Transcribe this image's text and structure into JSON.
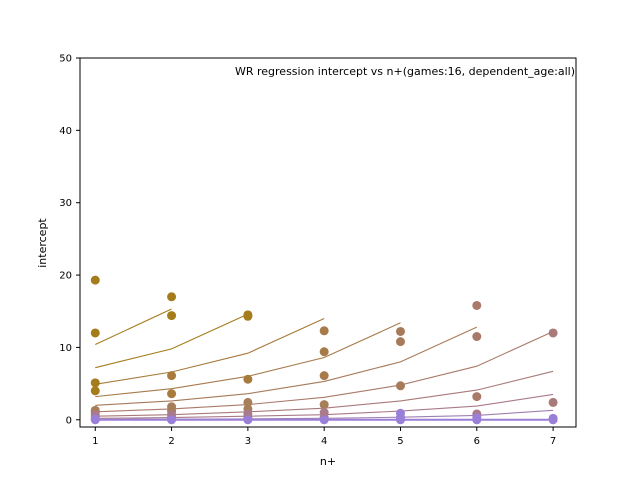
{
  "chart_data": {
    "type": "scatter",
    "title": "WR regression intercept vs n+(games:16, dependent_age:all)",
    "xlabel": "n+",
    "ylabel": "intercept",
    "xlim": [
      0.8,
      7.3
    ],
    "ylim": [
      -1,
      50
    ],
    "xticks": [
      1,
      2,
      3,
      4,
      5,
      6,
      7
    ],
    "yticks": [
      0,
      10,
      20,
      30,
      40,
      50
    ],
    "grid": false,
    "legend": "none",
    "scatter_points": [
      {
        "x": 1,
        "y": 19.3,
        "color": "#a57c1b"
      },
      {
        "x": 1,
        "y": 12.0,
        "color": "#a57c1b"
      },
      {
        "x": 1,
        "y": 5.1,
        "color": "#a57c1b"
      },
      {
        "x": 1,
        "y": 4.0,
        "color": "#a57c1b"
      },
      {
        "x": 1,
        "y": 1.3,
        "color": "#a77e5a"
      },
      {
        "x": 1,
        "y": 1.0,
        "color": "#a77e5a"
      },
      {
        "x": 1,
        "y": 0.7,
        "color": "#a97a8a"
      },
      {
        "x": 1,
        "y": 0.4,
        "color": "#a97a8a"
      },
      {
        "x": 1,
        "y": 0.1,
        "color": "#9a7fd8"
      },
      {
        "x": 1,
        "y": 0.0,
        "color": "#9a7fd8"
      },
      {
        "x": 2,
        "y": 17.0,
        "color": "#a57c1b"
      },
      {
        "x": 2,
        "y": 14.4,
        "color": "#a57c1b"
      },
      {
        "x": 2,
        "y": 6.1,
        "color": "#a87a3c"
      },
      {
        "x": 2,
        "y": 3.6,
        "color": "#a87a3c"
      },
      {
        "x": 2,
        "y": 1.8,
        "color": "#a77e5a"
      },
      {
        "x": 2,
        "y": 1.2,
        "color": "#a77e5a"
      },
      {
        "x": 2,
        "y": 0.7,
        "color": "#a97a8a"
      },
      {
        "x": 2,
        "y": 0.3,
        "color": "#a97a8a"
      },
      {
        "x": 2,
        "y": 0.0,
        "color": "#9a7fd8"
      },
      {
        "x": 3,
        "y": 14.5,
        "color": "#a57c1b"
      },
      {
        "x": 3,
        "y": 14.3,
        "color": "#a57c1b"
      },
      {
        "x": 3,
        "y": 5.6,
        "color": "#a87a3c"
      },
      {
        "x": 3,
        "y": 2.4,
        "color": "#a77e5a"
      },
      {
        "x": 3,
        "y": 1.5,
        "color": "#a77e5a"
      },
      {
        "x": 3,
        "y": 0.8,
        "color": "#a97a8a"
      },
      {
        "x": 3,
        "y": 0.3,
        "color": "#a97a8a"
      },
      {
        "x": 3,
        "y": 0.0,
        "color": "#9a7fd8"
      },
      {
        "x": 4,
        "y": 12.3,
        "color": "#a77a4a"
      },
      {
        "x": 4,
        "y": 9.4,
        "color": "#a77a4a"
      },
      {
        "x": 4,
        "y": 6.1,
        "color": "#a77a4a"
      },
      {
        "x": 4,
        "y": 2.1,
        "color": "#a77e5a"
      },
      {
        "x": 4,
        "y": 1.0,
        "color": "#a97a8a"
      },
      {
        "x": 4,
        "y": 0.3,
        "color": "#a97a8a"
      },
      {
        "x": 4,
        "y": 0.0,
        "color": "#9a7fd8"
      },
      {
        "x": 5,
        "y": 12.2,
        "color": "#a77a5a"
      },
      {
        "x": 5,
        "y": 10.8,
        "color": "#a77a5a"
      },
      {
        "x": 5,
        "y": 4.7,
        "color": "#a77a5a"
      },
      {
        "x": 5,
        "y": 0.9,
        "color": "#9a7fd8"
      },
      {
        "x": 5,
        "y": 0.3,
        "color": "#9a7fd8"
      },
      {
        "x": 5,
        "y": 0.0,
        "color": "#9a7fd8"
      },
      {
        "x": 6,
        "y": 15.8,
        "color": "#a97a6a"
      },
      {
        "x": 6,
        "y": 11.5,
        "color": "#a97a6a"
      },
      {
        "x": 6,
        "y": 3.2,
        "color": "#a97a6a"
      },
      {
        "x": 6,
        "y": 0.8,
        "color": "#a97a8a"
      },
      {
        "x": 6,
        "y": 0.3,
        "color": "#9a7fd8"
      },
      {
        "x": 6,
        "y": 0.0,
        "color": "#9a7fd8"
      },
      {
        "x": 7,
        "y": 12.0,
        "color": "#a97a7a"
      },
      {
        "x": 7,
        "y": 2.4,
        "color": "#a97a7a"
      },
      {
        "x": 7,
        "y": 0.2,
        "color": "#9a7fd8"
      },
      {
        "x": 7,
        "y": 0.0,
        "color": "#9a7fd8"
      }
    ],
    "series": [
      {
        "color": "#a57c1b",
        "x": [
          1,
          2
        ],
        "values": [
          10.4,
          15.3
        ]
      },
      {
        "color": "#a57c1b",
        "x": [
          1,
          2,
          3
        ],
        "values": [
          7.2,
          9.8,
          14.6
        ]
      },
      {
        "color": "#a87a3c",
        "x": [
          1,
          2,
          3,
          4
        ],
        "values": [
          4.9,
          6.6,
          9.2,
          14.0
        ]
      },
      {
        "color": "#a77a4a",
        "x": [
          1,
          2,
          3,
          4,
          5
        ],
        "values": [
          3.2,
          4.3,
          6.0,
          8.6,
          13.4
        ]
      },
      {
        "color": "#a77a5a",
        "x": [
          1,
          2,
          3,
          4,
          5,
          6
        ],
        "values": [
          2.0,
          2.6,
          3.6,
          5.3,
          8.0,
          12.8
        ]
      },
      {
        "color": "#a97a6a",
        "x": [
          1,
          2,
          3,
          4,
          5,
          6,
          7
        ],
        "values": [
          1.1,
          1.5,
          2.1,
          3.1,
          4.8,
          7.4,
          12.2
        ]
      },
      {
        "color": "#a97a7a",
        "x": [
          1,
          2,
          3,
          4,
          5,
          6,
          7
        ],
        "values": [
          0.5,
          0.7,
          1.1,
          1.6,
          2.6,
          4.1,
          6.7
        ]
      },
      {
        "color": "#a97a8a",
        "x": [
          1,
          2,
          3,
          4,
          5,
          6,
          7
        ],
        "values": [
          0.2,
          0.3,
          0.5,
          0.7,
          1.2,
          1.9,
          3.5
        ]
      },
      {
        "color": "#9f80b0",
        "x": [
          1,
          2,
          3,
          4,
          5,
          6,
          7
        ],
        "values": [
          0.05,
          0.08,
          0.12,
          0.2,
          0.35,
          0.6,
          1.3
        ]
      },
      {
        "color": "#9a7fd8",
        "x": [
          1,
          2,
          3,
          4,
          5,
          6,
          7
        ],
        "values": [
          0.0,
          0.0,
          0.0,
          0.0,
          0.0,
          0.0,
          0.0
        ]
      }
    ]
  }
}
